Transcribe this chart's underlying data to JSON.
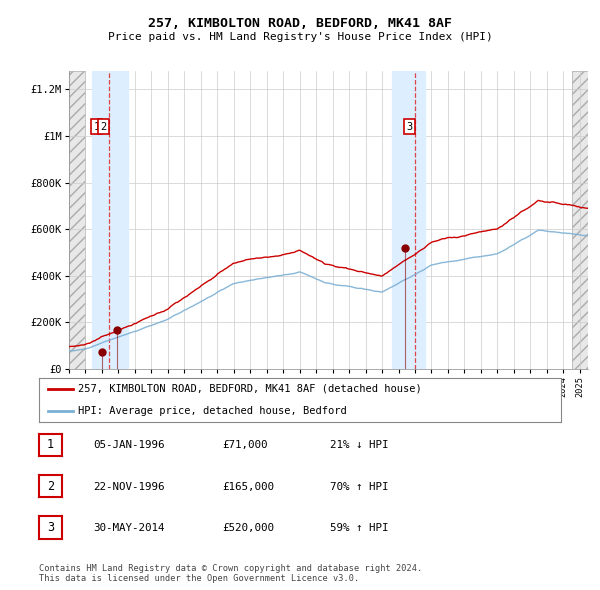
{
  "title1": "257, KIMBOLTON ROAD, BEDFORD, MK41 8AF",
  "title2": "Price paid vs. HM Land Registry's House Price Index (HPI)",
  "legend_line1": "257, KIMBOLTON ROAD, BEDFORD, MK41 8AF (detached house)",
  "legend_line2": "HPI: Average price, detached house, Bedford",
  "transactions": [
    {
      "num": 1,
      "date": "05-JAN-1996",
      "x_year": 1996.03,
      "price": 71000,
      "pct": "21%",
      "dir": "↓"
    },
    {
      "num": 2,
      "date": "22-NOV-1996",
      "x_year": 1996.89,
      "price": 165000,
      "pct": "70%",
      "dir": "↑"
    },
    {
      "num": 3,
      "date": "30-MAY-2014",
      "x_year": 2014.41,
      "price": 520000,
      "pct": "59%",
      "dir": "↑"
    }
  ],
  "footer": "Contains HM Land Registry data © Crown copyright and database right 2024.\nThis data is licensed under the Open Government Licence v3.0.",
  "xlim": [
    1994.0,
    2025.5
  ],
  "ylim": [
    0,
    1280000
  ],
  "red_line_color": "#cc0000",
  "blue_line_color": "#7bafd4",
  "vline_color": "#dd3333",
  "shade_color": "#ddeeff",
  "hatch_color": "#cccccc"
}
